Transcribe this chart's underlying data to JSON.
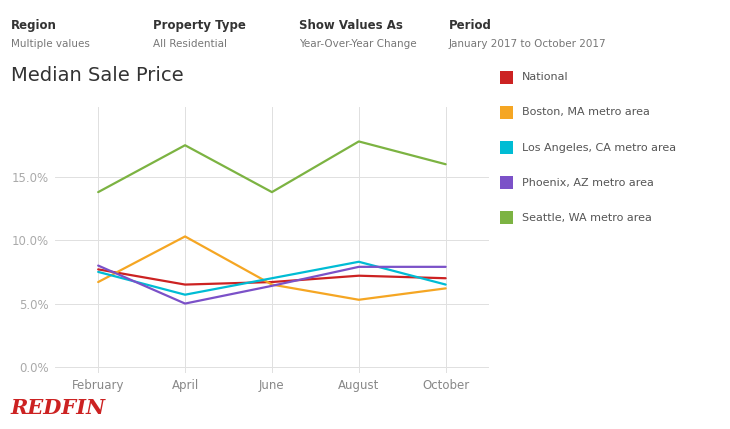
{
  "title": "Median Sale Price",
  "header_labels": [
    "Region",
    "Property Type",
    "Show Values As",
    "Period"
  ],
  "header_values": [
    "Multiple values",
    "All Residential",
    "Year-Over-Year Change",
    "January 2017 to October 2017"
  ],
  "x_labels": [
    "February",
    "April",
    "June",
    "August",
    "October"
  ],
  "x_positions": [
    1,
    3,
    5,
    7,
    9
  ],
  "series": [
    {
      "name": "National",
      "color": "#cc2222",
      "data": [
        7.7,
        6.5,
        6.7,
        7.2,
        7.0
      ]
    },
    {
      "name": "Boston, MA metro area",
      "color": "#f5a623",
      "data": [
        6.7,
        10.3,
        6.5,
        5.3,
        6.2
      ]
    },
    {
      "name": "Los Angeles, CA metro area",
      "color": "#00bcd4",
      "data": [
        7.5,
        5.7,
        7.0,
        8.3,
        6.5
      ]
    },
    {
      "name": "Phoenix, AZ metro area",
      "color": "#7b51c8",
      "data": [
        8.0,
        5.0,
        6.4,
        7.9,
        7.9
      ]
    },
    {
      "name": "Seattle, WA metro area",
      "color": "#7cb342",
      "data": [
        13.8,
        17.5,
        13.8,
        17.8,
        16.0
      ]
    }
  ],
  "ylim": [
    -0.5,
    20.5
  ],
  "yticks": [
    0.0,
    5.0,
    10.0,
    15.0
  ],
  "background_color": "#ffffff",
  "grid_color": "#e0e0e0",
  "title_fontsize": 14,
  "axis_fontsize": 8.5,
  "legend_fontsize": 8,
  "header_bold_color": "#333333",
  "header_value_color": "#777777",
  "tick_color": "#aaaaaa",
  "xtick_color": "#888888",
  "redfin_color": "#cc2222",
  "redfin_text": "REDFIN"
}
